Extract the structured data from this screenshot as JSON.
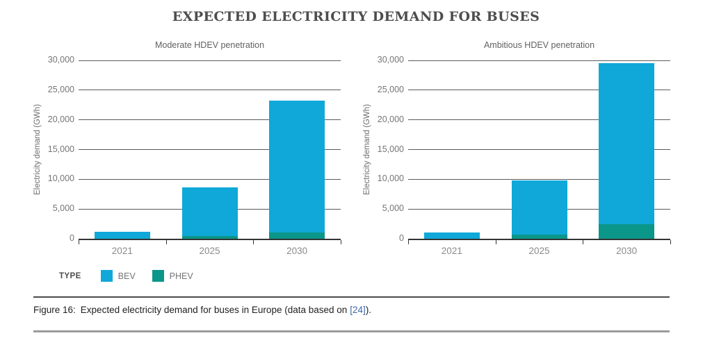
{
  "title": "EXPECTED ELECTRICITY DEMAND FOR BUSES",
  "legend": {
    "label": "TYPE",
    "items": [
      {
        "name": "BEV",
        "color": "#0fa8d9"
      },
      {
        "name": "PHEV",
        "color": "#0b968a"
      }
    ]
  },
  "caption": {
    "figure_label": "Figure 16:",
    "text": "Expected electricity demand for buses in Europe (data based on",
    "citation": "[24]",
    "suffix": ")."
  },
  "colors": {
    "bev": "#0fa8d9",
    "phev": "#0b968a",
    "gridline": "#5a5a5a",
    "axis": "#333333"
  },
  "chart_data": [
    {
      "type": "bar",
      "stacked": true,
      "title": "Moderate HDEV penetration",
      "categories": [
        "2021",
        "2025",
        "2030"
      ],
      "series": [
        {
          "name": "PHEV",
          "color": "#0b968a",
          "values": [
            0,
            500,
            1100
          ]
        },
        {
          "name": "BEV",
          "color": "#0fa8d9",
          "values": [
            1200,
            8100,
            22100
          ]
        }
      ],
      "xlabel": "",
      "ylabel": "Electricity demand (GWh)",
      "ylim": [
        0,
        30000
      ],
      "yticks": [
        0,
        5000,
        10000,
        15000,
        20000,
        25000,
        30000
      ],
      "grid": true,
      "legend_position": "bottom-left"
    },
    {
      "type": "bar",
      "stacked": true,
      "title": "Ambitious HDEV penetration",
      "categories": [
        "2021",
        "2025",
        "2030"
      ],
      "series": [
        {
          "name": "PHEV",
          "color": "#0b968a",
          "values": [
            0,
            700,
            2500
          ]
        },
        {
          "name": "BEV",
          "color": "#0fa8d9",
          "values": [
            1100,
            9100,
            27000
          ]
        }
      ],
      "xlabel": "",
      "ylabel": "Electricity demand (GWh)",
      "ylim": [
        0,
        30000
      ],
      "yticks": [
        0,
        5000,
        10000,
        15000,
        20000,
        25000,
        30000
      ],
      "grid": true,
      "legend_position": "none"
    }
  ]
}
